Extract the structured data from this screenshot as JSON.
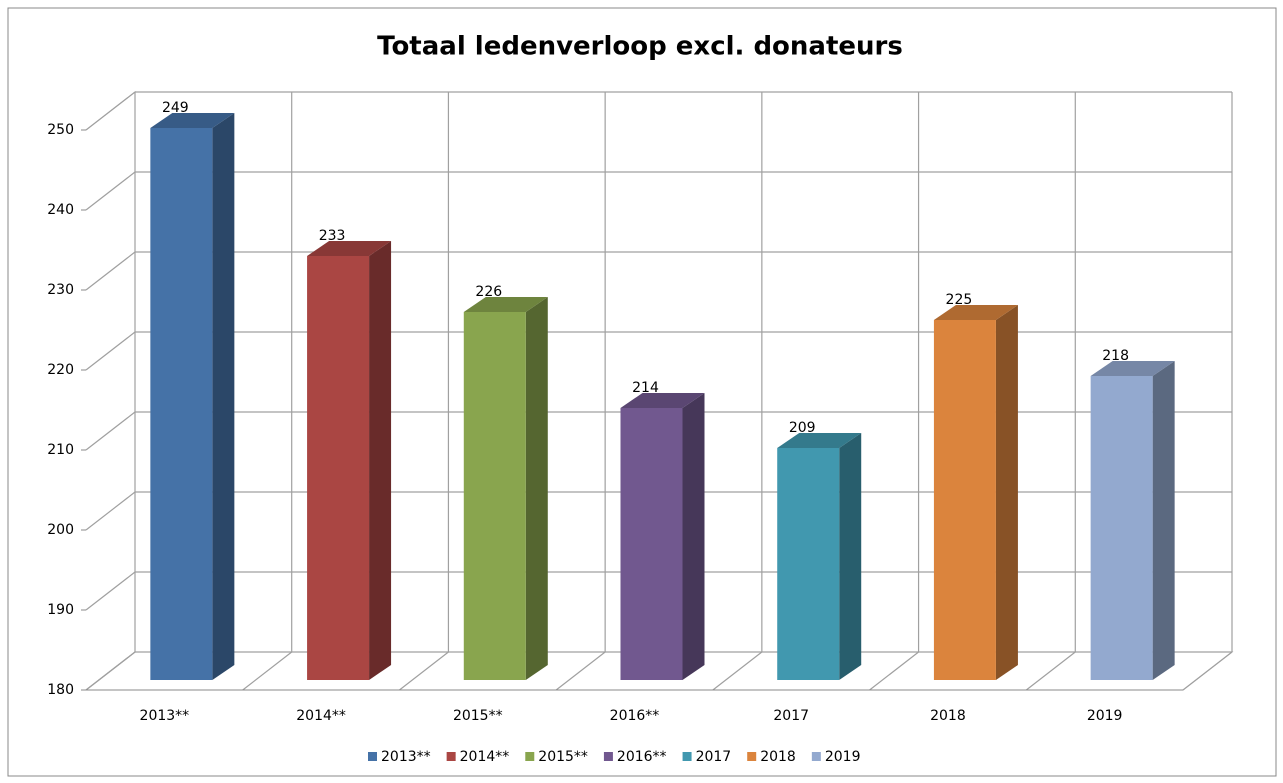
{
  "chart_data": {
    "type": "bar3d",
    "title": "Totaal ledenverloop excl. donateurs",
    "categories": [
      "2013**",
      "2014**",
      "2015**",
      "2016**",
      "2017",
      "2018",
      "2019"
    ],
    "values": [
      249,
      233,
      226,
      214,
      209,
      225,
      218
    ],
    "colors": [
      "#4572a7",
      "#aa4643",
      "#89a54e",
      "#71588f",
      "#4198af",
      "#db843d",
      "#93a9cf"
    ],
    "ylim": [
      180,
      250
    ],
    "yticks": [
      180,
      190,
      200,
      210,
      220,
      230,
      240,
      250
    ],
    "grid": true,
    "legend": "bottom",
    "data_labels": true
  }
}
